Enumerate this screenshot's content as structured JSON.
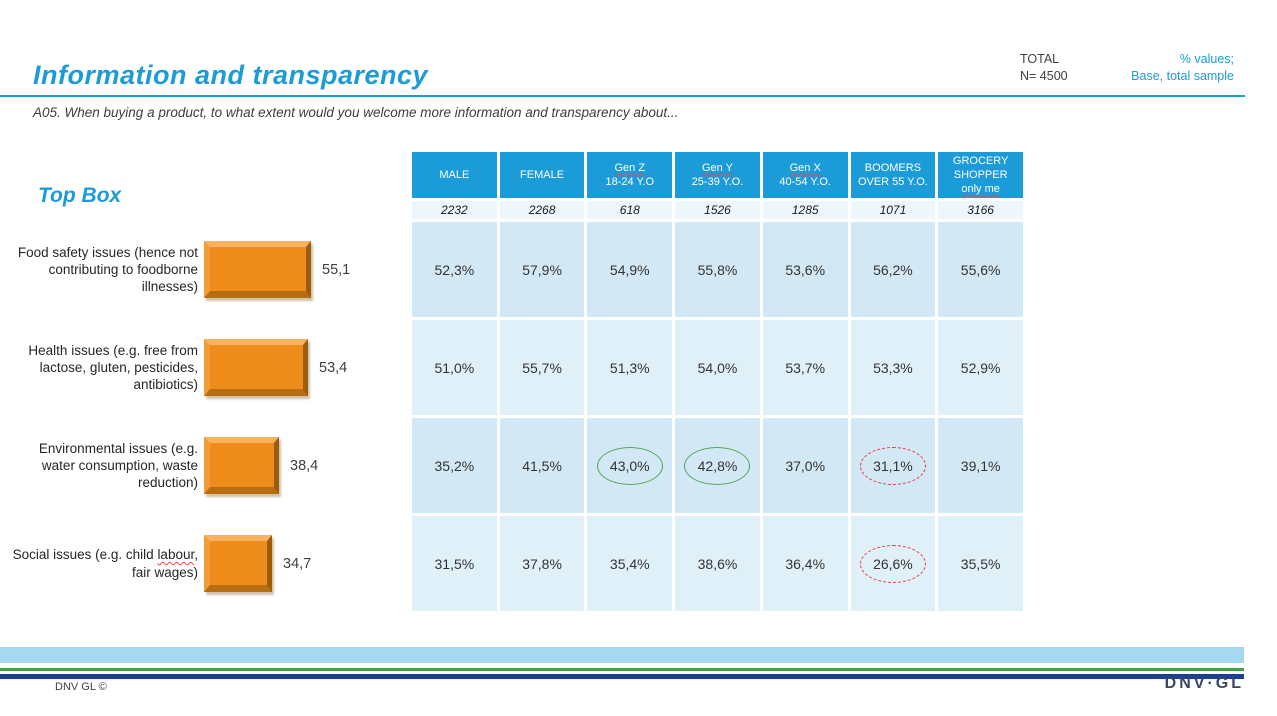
{
  "header": {
    "title": "Information and transparency",
    "question": "A05. When buying a product, to what extent would you welcome more information and transparency about...",
    "total_label": "TOTAL",
    "total_value": "N= 4500",
    "note_line1": "% values;",
    "note_line2": "Base, total sample"
  },
  "chart_data": {
    "type": "bar",
    "orientation": "horizontal",
    "title": "Top Box",
    "categories": [
      "Food safety issues (hence not contributing to foodborne illnesses)",
      "Health issues (e.g. free from lactose, gluten, pesticides, antibiotics)",
      "Environmental issues (e.g. water consumption, waste reduction)",
      "Social issues (e.g. child labour, fair wages)"
    ],
    "values": [
      55.1,
      53.4,
      38.4,
      34.7
    ],
    "value_labels": [
      "55,1",
      "53,4",
      "38,4",
      "34,7"
    ],
    "xlim": [
      0,
      60
    ],
    "squiggle_words": [
      "labour"
    ]
  },
  "table": {
    "columns": [
      {
        "lines": [
          {
            "text": "MALE",
            "squiggle": false
          }
        ],
        "base": "2232"
      },
      {
        "lines": [
          {
            "text": "FEMALE",
            "squiggle": false
          }
        ],
        "base": "2268"
      },
      {
        "lines": [
          {
            "text": "Gen Z",
            "squiggle": true
          },
          {
            "text": "18-24 Y.O",
            "squiggle": false
          }
        ],
        "base": "618"
      },
      {
        "lines": [
          {
            "text": "Gen Y",
            "squiggle": true
          },
          {
            "text": "25-39 Y.O.",
            "squiggle": false
          }
        ],
        "base": "1526"
      },
      {
        "lines": [
          {
            "text": "Gen X",
            "squiggle": true
          },
          {
            "text": "40-54 Y.O.",
            "squiggle": false
          }
        ],
        "base": "1285"
      },
      {
        "lines": [
          {
            "text": "BOOMERS",
            "squiggle": false
          },
          {
            "text": "OVER 55 Y.O.",
            "squiggle": false
          }
        ],
        "base": "1071"
      },
      {
        "lines": [
          {
            "text": "GROCERY",
            "squiggle": false
          },
          {
            "text": "SHOPPER",
            "squiggle": false
          },
          {
            "text": "only me",
            "squiggle": true
          }
        ],
        "base": "3166"
      }
    ],
    "rows": [
      {
        "cells": [
          "52,3%",
          "57,9%",
          "54,9%",
          "55,8%",
          "53,6%",
          "56,2%",
          "55,6%"
        ],
        "highlights": [
          null,
          null,
          null,
          null,
          null,
          null,
          null
        ]
      },
      {
        "cells": [
          "51,0%",
          "55,7%",
          "51,3%",
          "54,0%",
          "53,7%",
          "53,3%",
          "52,9%"
        ],
        "highlights": [
          null,
          null,
          null,
          null,
          null,
          null,
          null
        ]
      },
      {
        "cells": [
          "35,2%",
          "41,5%",
          "43,0%",
          "42,8%",
          "37,0%",
          "31,1%",
          "39,1%"
        ],
        "highlights": [
          null,
          null,
          "green",
          "green",
          null,
          "red",
          null
        ]
      },
      {
        "cells": [
          "31,5%",
          "37,8%",
          "35,4%",
          "38,6%",
          "36,4%",
          "26,6%",
          "35,5%"
        ],
        "highlights": [
          null,
          null,
          null,
          null,
          null,
          "red",
          null
        ]
      }
    ]
  },
  "footer": {
    "copyright": "DNV GL ©",
    "logo": "DNV·GL"
  },
  "colors": {
    "accent": "#1b9cd8",
    "table_header_bg": "#1b9cd8",
    "row_shade_a": "#d2e9f5",
    "row_shade_b": "#e0f0f9",
    "base_row_bg": "#ecf6fb",
    "bar_fill": "#ef8d1c",
    "bar_bevel_light": "#f8b25e",
    "bar_bevel_mid": "#f29d38",
    "bar_bevel_dark": "#b76e10",
    "bar_bevel_darker": "#9c5c08",
    "green_circle": "#55a555",
    "red_circle": "#ee3333",
    "band_light_blue": "#a6d8ef",
    "band_green": "#3da53f",
    "band_navy": "#1b3f94",
    "logo_navy": "#3a4660",
    "squiggle": "#ff4040",
    "text_dark": "#333333"
  }
}
